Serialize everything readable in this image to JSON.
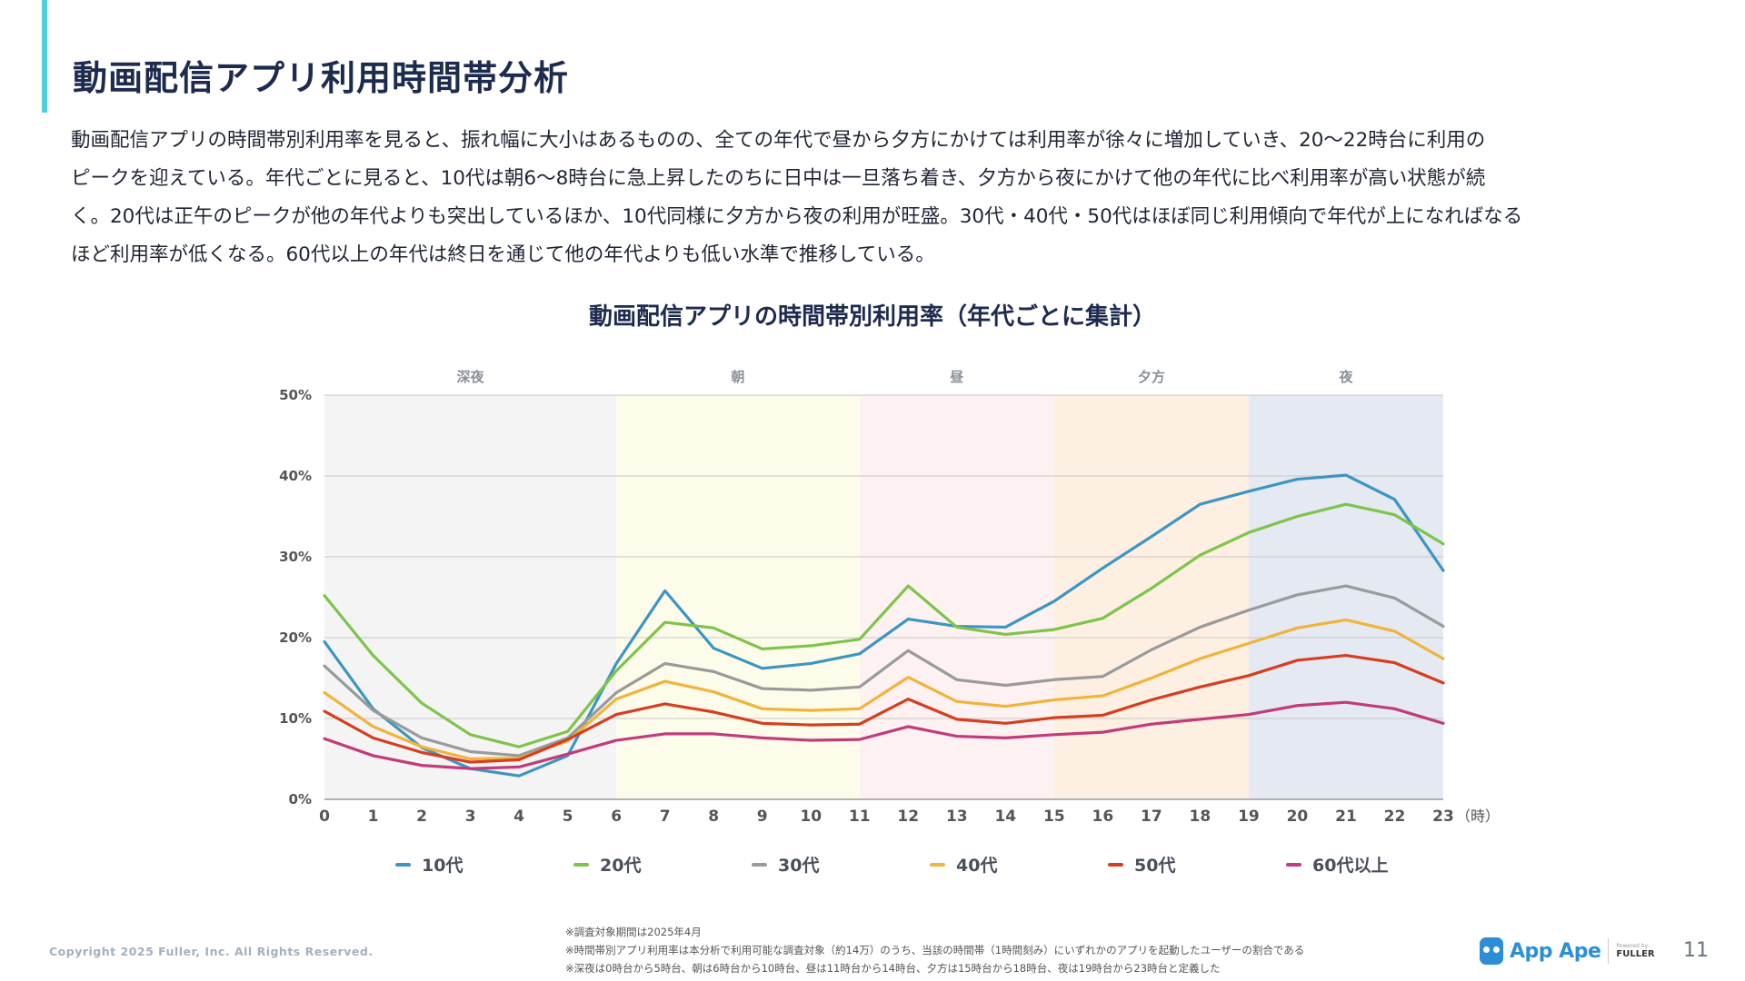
{
  "header": {
    "title": "動画配信アプリ利用時間帯分析",
    "intro_lines": [
      "動画配信アプリの時間帯別利用率を見ると、振れ幅に大小はあるものの、全ての年代で昼から夕方にかけては利用率が徐々に増加していき、20〜22時台に利用の",
      "ピークを迎えている。年代ごとに見ると、10代は朝6〜8時台に急上昇したのちに日中は一旦落ち着き、夕方から夜にかけて他の年代に比べ利用率が高い状態が続",
      "く。20代は正午のピークが他の年代よりも突出しているほか、10代同様に夕方から夜の利用が旺盛。30代・40代・50代はほぼ同じ利用傾向で年代が上になればなる",
      "ほど利用率が低くなる。60代以上の年代は終日を通じて他の年代よりも低い水準で推移している。"
    ]
  },
  "chart_data": {
    "type": "line",
    "title": "動画配信アプリの時間帯別利用率（年代ごとに集計）",
    "x": [
      0,
      1,
      2,
      3,
      4,
      5,
      6,
      7,
      8,
      9,
      10,
      11,
      12,
      13,
      14,
      15,
      16,
      17,
      18,
      19,
      20,
      21,
      22,
      23
    ],
    "x_unit_label": "（時）",
    "ylim": [
      0,
      50
    ],
    "yticks": [
      "0%",
      "10%",
      "20%",
      "30%",
      "40%",
      "50%"
    ],
    "grid": true,
    "bands": [
      {
        "label": "深夜",
        "from": 0,
        "to": 6,
        "color": "#f4f4f4"
      },
      {
        "label": "朝",
        "from": 6,
        "to": 11,
        "color": "#fdfcea"
      },
      {
        "label": "昼",
        "from": 11,
        "to": 15,
        "color": "#fdf1f1"
      },
      {
        "label": "夕方",
        "from": 15,
        "to": 19,
        "color": "#fdf0e2"
      },
      {
        "label": "夜",
        "from": 19,
        "to": 23,
        "color": "#e4e9f2"
      }
    ],
    "series": [
      {
        "name": "10代",
        "color": "#3d95c2",
        "values": [
          19.5,
          11.2,
          6.4,
          3.8,
          2.9,
          5.4,
          16.8,
          25.8,
          18.7,
          16.2,
          16.8,
          18.0,
          22.3,
          21.4,
          21.3,
          24.5,
          28.6,
          32.5,
          36.5,
          38.1,
          39.6,
          40.1,
          37.1,
          28.3
        ]
      },
      {
        "name": "20代",
        "color": "#7ec44a",
        "values": [
          25.2,
          17.8,
          11.9,
          8.0,
          6.5,
          8.4,
          15.9,
          21.9,
          21.2,
          18.6,
          19.0,
          19.8,
          26.4,
          21.3,
          20.4,
          21.0,
          22.4,
          26.1,
          30.2,
          33.0,
          35.0,
          36.5,
          35.2,
          31.6
        ]
      },
      {
        "name": "30代",
        "color": "#9a9a9a",
        "values": [
          16.5,
          11.0,
          7.6,
          5.9,
          5.4,
          7.6,
          13.2,
          16.8,
          15.8,
          13.7,
          13.5,
          13.9,
          18.4,
          14.8,
          14.1,
          14.8,
          15.2,
          18.5,
          21.3,
          23.4,
          25.3,
          26.4,
          24.9,
          21.4
        ]
      },
      {
        "name": "40代",
        "color": "#f0b43c",
        "values": [
          13.2,
          9.0,
          6.5,
          5.0,
          5.1,
          7.2,
          12.4,
          14.6,
          13.3,
          11.2,
          11.0,
          11.2,
          15.1,
          12.1,
          11.5,
          12.3,
          12.8,
          15.0,
          17.4,
          19.3,
          21.2,
          22.2,
          20.8,
          17.4
        ]
      },
      {
        "name": "50代",
        "color": "#d63e20",
        "values": [
          10.9,
          7.6,
          5.8,
          4.6,
          4.9,
          7.4,
          10.5,
          11.8,
          10.8,
          9.4,
          9.2,
          9.3,
          12.4,
          9.9,
          9.4,
          10.1,
          10.4,
          12.3,
          13.9,
          15.3,
          17.2,
          17.8,
          16.9,
          14.4
        ]
      },
      {
        "name": "60代以上",
        "color": "#c23b7a",
        "values": [
          7.5,
          5.4,
          4.2,
          3.8,
          4.0,
          5.6,
          7.3,
          8.1,
          8.1,
          7.6,
          7.3,
          7.4,
          9.0,
          7.8,
          7.6,
          8.0,
          8.3,
          9.3,
          9.9,
          10.5,
          11.6,
          12.0,
          11.2,
          9.4
        ]
      }
    ]
  },
  "footer": {
    "copyright": "Copyright 2025 Fuller, Inc. All Rights Reserved.",
    "notes": [
      "※調査対象期間は2025年4月",
      "※時間帯別アプリ利用率は本分析で利用可能な調査対象（約14万）のうち、当該の時間帯（1時間刻み）にいずれかのアプリを起動したユーザーの割合である",
      "※深夜は0時台から5時台、朝は6時台から10時台、昼は11時台から14時台、夕方は15時台から18時台、夜は19時台から23時台と定義した"
    ],
    "logo_text": "App Ape",
    "powered_by": "Powered by",
    "company": "FULLER",
    "page_number": "11"
  }
}
